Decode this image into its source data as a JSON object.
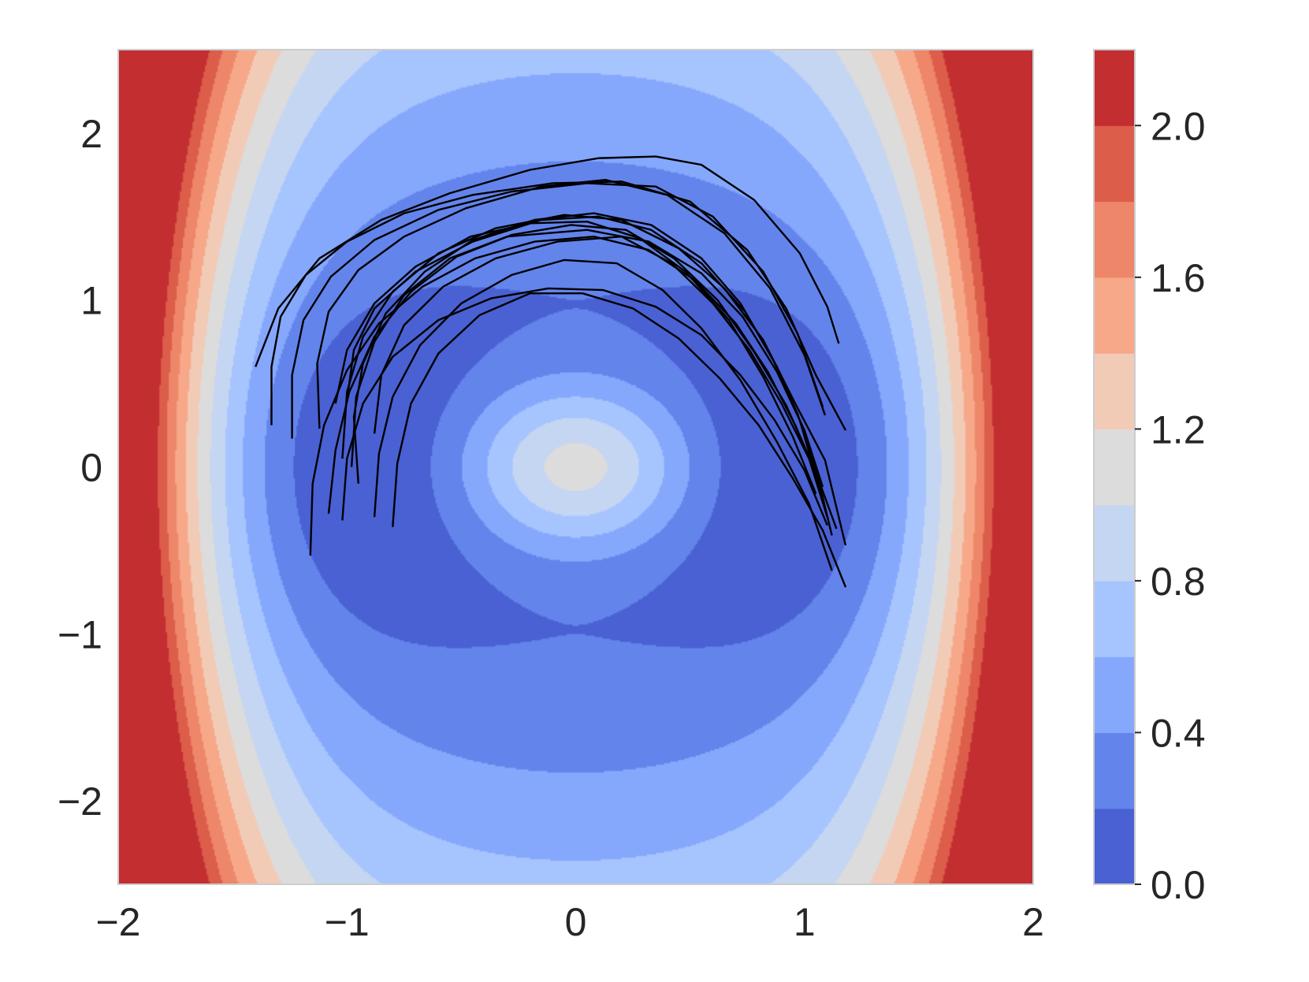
{
  "chart_data": {
    "type": "contour",
    "colormap": "coolwarm",
    "xlim": [
      -2,
      2
    ],
    "ylim": [
      -2.5,
      2.5
    ],
    "x_ticks": [
      -2,
      -1,
      0,
      1,
      2
    ],
    "x_tick_labels": [
      "−2",
      "−1",
      "0",
      "1",
      "2"
    ],
    "y_ticks": [
      -2,
      -1,
      0,
      1,
      2
    ],
    "y_tick_labels": [
      "−2",
      "−1",
      "0",
      "1",
      "2"
    ],
    "contour_levels": [
      0.0,
      0.2,
      0.4,
      0.6,
      0.8,
      1.0,
      1.2,
      1.4,
      1.6,
      1.8,
      2.0,
      2.2
    ],
    "level_colors": [
      "#4961d2",
      "#6384eb",
      "#85a8fc",
      "#a6c4fe",
      "#c5d6f2",
      "#dddcdc",
      "#f2cbb7",
      "#f6a889",
      "#ee8669",
      "#dc5d4a",
      "#c32e31"
    ],
    "colorbar_ticks": [
      0.0,
      0.4,
      0.8,
      1.2,
      1.6,
      2.0
    ],
    "colorbar_tick_labels": [
      "0.0",
      "0.4",
      "0.8",
      "1.2",
      "1.6",
      "2.0"
    ],
    "field_minima": [
      [
        -1.05,
        0
      ],
      [
        1.05,
        0
      ]
    ],
    "field_maximum": [
      0,
      0
    ],
    "grid": false,
    "trajectory_color": "#000000",
    "trajectories": [
      [
        [
          -1.33,
          0.25
        ],
        [
          -1.33,
          0.6
        ],
        [
          -1.29,
          0.9
        ],
        [
          -1.18,
          1.15
        ],
        [
          -1.0,
          1.35
        ],
        [
          -0.75,
          1.52
        ],
        [
          -0.45,
          1.63
        ],
        [
          -0.1,
          1.7
        ],
        [
          0.2,
          1.71
        ],
        [
          0.5,
          1.59
        ],
        [
          0.75,
          1.3
        ],
        [
          0.92,
          0.95
        ],
        [
          1.05,
          0.55
        ],
        [
          1.18,
          0.22
        ]
      ],
      [
        [
          -1.24,
          0.17
        ],
        [
          -1.24,
          0.55
        ],
        [
          -1.19,
          0.88
        ],
        [
          -1.07,
          1.14
        ],
        [
          -0.88,
          1.36
        ],
        [
          -0.6,
          1.54
        ],
        [
          -0.28,
          1.65
        ],
        [
          0.05,
          1.7
        ],
        [
          0.35,
          1.68
        ],
        [
          0.6,
          1.5
        ],
        [
          0.82,
          1.17
        ],
        [
          0.97,
          0.8
        ],
        [
          1.08,
          0.36
        ]
      ],
      [
        [
          -1.12,
          0.23
        ],
        [
          -1.13,
          0.62
        ],
        [
          -1.08,
          0.93
        ],
        [
          -0.95,
          1.18
        ],
        [
          -0.75,
          1.38
        ],
        [
          -0.48,
          1.55
        ],
        [
          -0.15,
          1.68
        ],
        [
          0.13,
          1.72
        ],
        [
          0.4,
          1.63
        ],
        [
          0.65,
          1.4
        ],
        [
          0.85,
          1.07
        ],
        [
          1.0,
          0.67
        ],
        [
          1.09,
          0.31
        ]
      ],
      [
        [
          -1.0,
          0.4
        ],
        [
          -0.97,
          0.7
        ],
        [
          -0.88,
          0.95
        ],
        [
          -0.7,
          1.17
        ],
        [
          -0.45,
          1.35
        ],
        [
          -0.15,
          1.48
        ],
        [
          0.1,
          1.5
        ],
        [
          0.33,
          1.42
        ],
        [
          0.55,
          1.22
        ],
        [
          0.74,
          0.93
        ],
        [
          0.88,
          0.6
        ],
        [
          0.98,
          0.28
        ],
        [
          1.08,
          -0.2
        ]
      ],
      [
        [
          -1.02,
          0.05
        ],
        [
          -1.0,
          0.45
        ],
        [
          -0.93,
          0.78
        ],
        [
          -0.8,
          1.05
        ],
        [
          -0.6,
          1.28
        ],
        [
          -0.35,
          1.43
        ],
        [
          -0.05,
          1.51
        ],
        [
          0.2,
          1.48
        ],
        [
          0.45,
          1.31
        ],
        [
          0.65,
          1.07
        ],
        [
          0.82,
          0.76
        ],
        [
          0.96,
          0.38
        ],
        [
          1.09,
          0.04
        ],
        [
          1.18,
          -0.47
        ]
      ],
      [
        [
          -0.95,
          -0.1
        ],
        [
          -0.97,
          0.3
        ],
        [
          -0.93,
          0.62
        ],
        [
          -0.83,
          0.92
        ],
        [
          -0.66,
          1.17
        ],
        [
          -0.45,
          1.36
        ],
        [
          -0.18,
          1.48
        ],
        [
          0.08,
          1.52
        ],
        [
          0.33,
          1.45
        ],
        [
          0.55,
          1.25
        ],
        [
          0.72,
          0.98
        ],
        [
          0.86,
          0.65
        ],
        [
          0.97,
          0.32
        ],
        [
          1.06,
          -0.07
        ],
        [
          1.14,
          -0.37
        ]
      ],
      [
        [
          -1.05,
          0.38
        ],
        [
          -1.0,
          0.7
        ],
        [
          -0.88,
          0.98
        ],
        [
          -0.7,
          1.2
        ],
        [
          -0.46,
          1.38
        ],
        [
          -0.2,
          1.46
        ],
        [
          0.05,
          1.47
        ],
        [
          0.28,
          1.37
        ],
        [
          0.48,
          1.17
        ],
        [
          0.67,
          0.88
        ],
        [
          0.82,
          0.54
        ],
        [
          0.95,
          0.18
        ],
        [
          1.05,
          -0.16
        ]
      ],
      [
        [
          -1.08,
          -0.28
        ],
        [
          -1.05,
          0.1
        ],
        [
          -0.99,
          0.45
        ],
        [
          -0.88,
          0.78
        ],
        [
          -0.72,
          1.05
        ],
        [
          -0.52,
          1.26
        ],
        [
          -0.28,
          1.39
        ],
        [
          -0.02,
          1.45
        ],
        [
          0.22,
          1.42
        ],
        [
          0.43,
          1.25
        ],
        [
          0.62,
          1.0
        ],
        [
          0.78,
          0.69
        ],
        [
          0.92,
          0.37
        ],
        [
          1.03,
          0.03
        ],
        [
          1.1,
          -0.3
        ]
      ],
      [
        [
          -1.16,
          -0.53
        ],
        [
          -1.15,
          -0.1
        ],
        [
          -1.1,
          0.25
        ],
        [
          -1.0,
          0.58
        ],
        [
          -0.86,
          0.86
        ],
        [
          -0.67,
          1.08
        ],
        [
          -0.44,
          1.25
        ],
        [
          -0.18,
          1.35
        ],
        [
          0.08,
          1.38
        ],
        [
          0.32,
          1.3
        ],
        [
          0.52,
          1.12
        ],
        [
          0.7,
          0.86
        ],
        [
          0.84,
          0.57
        ],
        [
          0.96,
          0.25
        ],
        [
          1.06,
          -0.07
        ],
        [
          1.12,
          -0.41
        ]
      ],
      [
        [
          -0.88,
          -0.3
        ],
        [
          -0.86,
          0.08
        ],
        [
          -0.8,
          0.42
        ],
        [
          -0.68,
          0.73
        ],
        [
          -0.5,
          0.98
        ],
        [
          -0.28,
          1.15
        ],
        [
          -0.05,
          1.24
        ],
        [
          0.18,
          1.22
        ],
        [
          0.38,
          1.06
        ],
        [
          0.55,
          0.83
        ],
        [
          0.72,
          0.52
        ],
        [
          0.88,
          0.15
        ],
        [
          1.02,
          -0.22
        ],
        [
          1.12,
          -0.62
        ]
      ],
      [
        [
          -0.8,
          -0.36
        ],
        [
          -0.78,
          0.02
        ],
        [
          -0.72,
          0.38
        ],
        [
          -0.6,
          0.68
        ],
        [
          -0.42,
          0.91
        ],
        [
          -0.2,
          1.04
        ],
        [
          0.03,
          1.04
        ],
        [
          0.25,
          0.95
        ],
        [
          0.45,
          0.77
        ],
        [
          0.63,
          0.53
        ],
        [
          0.8,
          0.25
        ],
        [
          0.95,
          -0.07
        ],
        [
          1.08,
          -0.38
        ],
        [
          1.18,
          -0.72
        ]
      ],
      [
        [
          -1.02,
          -0.32
        ],
        [
          -1.0,
          0.05
        ],
        [
          -0.93,
          0.38
        ],
        [
          -0.8,
          0.66
        ],
        [
          -0.6,
          0.88
        ],
        [
          -0.37,
          1.01
        ],
        [
          -0.12,
          1.07
        ],
        [
          0.12,
          1.06
        ],
        [
          0.35,
          0.96
        ],
        [
          0.55,
          0.79
        ],
        [
          0.72,
          0.55
        ],
        [
          0.87,
          0.28
        ],
        [
          1.0,
          -0.02
        ],
        [
          1.1,
          -0.35
        ]
      ],
      [
        [
          -0.88,
          0.2
        ],
        [
          -0.85,
          0.55
        ],
        [
          -0.75,
          0.85
        ],
        [
          -0.58,
          1.08
        ],
        [
          -0.35,
          1.25
        ],
        [
          -0.08,
          1.35
        ],
        [
          0.2,
          1.38
        ],
        [
          0.42,
          1.22
        ],
        [
          0.6,
          0.98
        ],
        [
          0.76,
          0.7
        ],
        [
          0.9,
          0.38
        ],
        [
          1.02,
          0.05
        ],
        [
          1.1,
          -0.3
        ]
      ],
      [
        [
          -0.98,
          0.0
        ],
        [
          -0.96,
          0.42
        ],
        [
          -0.88,
          0.75
        ],
        [
          -0.75,
          1.03
        ],
        [
          -0.55,
          1.25
        ],
        [
          -0.3,
          1.38
        ],
        [
          0.05,
          1.42
        ],
        [
          0.32,
          1.35
        ],
        [
          0.55,
          1.16
        ],
        [
          0.73,
          0.9
        ],
        [
          0.88,
          0.57
        ],
        [
          1.0,
          0.22
        ],
        [
          1.08,
          -0.12
        ]
      ],
      [
        [
          -1.4,
          0.6
        ],
        [
          -1.3,
          0.95
        ],
        [
          -1.12,
          1.25
        ],
        [
          -0.85,
          1.48
        ],
        [
          -0.55,
          1.64
        ],
        [
          -0.2,
          1.78
        ],
        [
          0.1,
          1.85
        ],
        [
          0.35,
          1.86
        ],
        [
          0.55,
          1.81
        ],
        [
          0.78,
          1.6
        ],
        [
          0.98,
          1.28
        ],
        [
          1.1,
          0.96
        ],
        [
          1.15,
          0.74
        ]
      ]
    ]
  }
}
